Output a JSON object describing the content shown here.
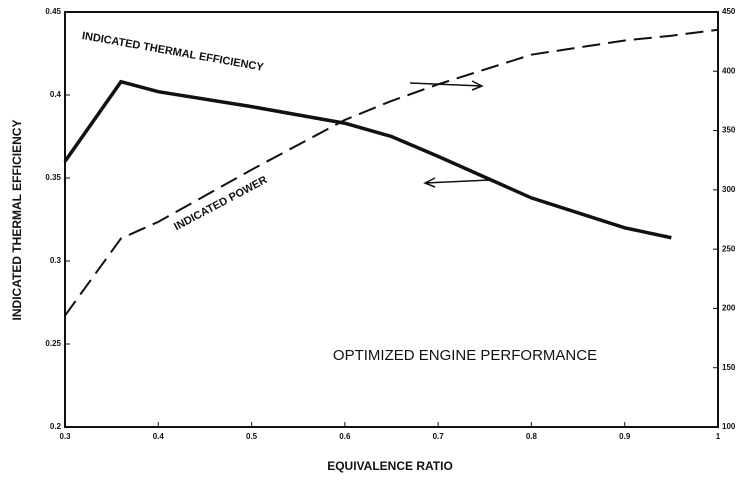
{
  "chart_data": {
    "type": "line",
    "title": "OPTIMIZED ENGINE PERFORMANCE",
    "x_label": "EQUIVALENCE RATIO",
    "y_label": "INDICATED THERMAL EFFICIENCY",
    "x": [
      0.3,
      0.36,
      0.4,
      0.5,
      0.6,
      0.65,
      0.7,
      0.8,
      0.9,
      0.95,
      1.0
    ],
    "series": [
      {
        "name": "INDICATED THERMAL EFFICIENCY",
        "color": "#111111",
        "style": "solid",
        "values": [
          0.36,
          0.408,
          0.402,
          0.393,
          0.383,
          0.375,
          0.363,
          0.338,
          0.32,
          0.314,
          null
        ]
      },
      {
        "name": "INDICATED POWER",
        "color": "#111111",
        "style": "dashed",
        "axis": "y2",
        "values": [
          194,
          259,
          273,
          317,
          359,
          375,
          389,
          414,
          426,
          430,
          435
        ]
      }
    ],
    "xlim": [
      0.3,
      1
    ],
    "xticks": [
      0.3,
      0.4,
      0.5,
      0.6,
      0.7,
      0.8,
      0.9,
      1
    ],
    "ylim": [
      0.2,
      0.45
    ],
    "yticks": [
      0.2,
      0.25,
      0.3,
      0.35,
      0.4,
      0.45
    ],
    "y2lim": [
      100,
      450
    ],
    "y2ticks": [
      100,
      150,
      200,
      250,
      300,
      350,
      400,
      450
    ],
    "grid": false
  }
}
